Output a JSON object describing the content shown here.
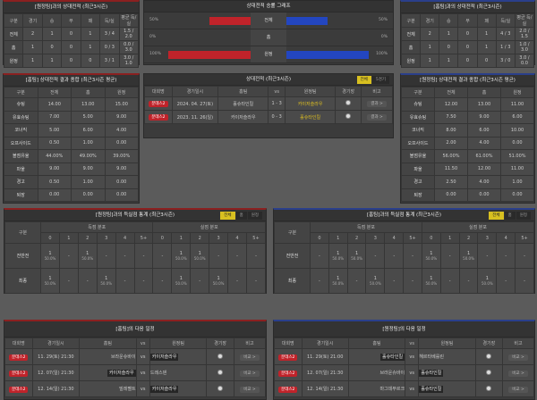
{
  "h2h_left": {
    "title": "[원정팀]과의 상대전적 (최근3시즌)",
    "headers": [
      "구분",
      "경기",
      "승",
      "무",
      "패",
      "득/실",
      "평균 득/실"
    ],
    "rows": [
      [
        "전체",
        "2",
        "1",
        "0",
        "1",
        "3 / 4",
        "1.5 / 2.0"
      ],
      [
        "홈",
        "1",
        "0",
        "0",
        "1",
        "0 / 3",
        "0.0 / 3.0"
      ],
      [
        "원정",
        "1",
        "1",
        "0",
        "0",
        "3 / 1",
        "3.0 / 1.0"
      ]
    ]
  },
  "h2h_right": {
    "title": "[홈팀]과의 상대전적 (최근3시즌)",
    "headers": [
      "구분",
      "경기",
      "승",
      "무",
      "패",
      "득/실",
      "평균 득/실"
    ],
    "rows": [
      [
        "전체",
        "2",
        "1",
        "0",
        "1",
        "4 / 3",
        "2.0 / 1.5"
      ],
      [
        "홈",
        "1",
        "0",
        "0",
        "1",
        "1 / 3",
        "1.0 / 3.0"
      ],
      [
        "원정",
        "1",
        "1",
        "0",
        "0",
        "3 / 0",
        "3.0 / 0.0"
      ]
    ]
  },
  "graph": {
    "title": "상대전적 승률 그래프",
    "home_color": "#c0232a",
    "away_color": "#2346c0",
    "rows": [
      {
        "label": "전체",
        "left": 50,
        "right": 50,
        "left_text": "50%",
        "right_text": "50%"
      },
      {
        "label": "홈",
        "left": 0,
        "right": 0,
        "left_text": "0%",
        "right_text": "0%"
      },
      {
        "label": "원정",
        "left": 100,
        "right": 100,
        "left_text": "100%",
        "right_text": "100%"
      }
    ]
  },
  "summary_left": {
    "title": "[홈팀] 상대전적 결과 종합 (최근3시즌 평균)",
    "headers": [
      "구분",
      "전체",
      "홈",
      "원정"
    ],
    "rows": [
      [
        "슈팅",
        "14.00",
        "13.00",
        "15.00"
      ],
      [
        "유효슈팅",
        "7.00",
        "5.00",
        "9.00"
      ],
      [
        "코너킥",
        "5.00",
        "6.00",
        "4.00"
      ],
      [
        "오프사이드",
        "0.50",
        "1.00",
        "0.00"
      ],
      [
        "볼점유율",
        "44.00%",
        "49.00%",
        "39.00%"
      ],
      [
        "파울",
        "9.00",
        "9.00",
        "9.00"
      ],
      [
        "경고",
        "0.50",
        "1.00",
        "0.00"
      ],
      [
        "퇴장",
        "0.00",
        "0.00",
        "0.00"
      ]
    ]
  },
  "summary_right": {
    "title": "[원정팀] 상대전적 결과 종합 (최근3시즌 평균)",
    "headers": [
      "구분",
      "전체",
      "홈",
      "원정"
    ],
    "rows": [
      [
        "슈팅",
        "12.00",
        "13.00",
        "11.00"
      ],
      [
        "유효슈팅",
        "7.50",
        "9.00",
        "6.00"
      ],
      [
        "코너킥",
        "8.00",
        "6.00",
        "10.00"
      ],
      [
        "오프사이드",
        "2.00",
        "4.00",
        "0.00"
      ],
      [
        "볼점유율",
        "56.00%",
        "61.00%",
        "51.00%"
      ],
      [
        "파울",
        "11.50",
        "12.00",
        "11.00"
      ],
      [
        "경고",
        "2.50",
        "4.00",
        "1.00"
      ],
      [
        "퇴장",
        "0.00",
        "0.00",
        "0.00"
      ]
    ]
  },
  "recent": {
    "title": "상대전적 (최근3시즌)",
    "tabs": [
      "전체",
      "5경기"
    ],
    "headers": [
      "대회명",
      "경기일시",
      "홈팀",
      "vs",
      "원정팀",
      "경기장",
      "비고"
    ],
    "rows": [
      {
        "league": "분데스2",
        "date": "2024. 04. 27(토)",
        "home": "홀슈타인킬",
        "score": "1 - 3",
        "away": "카이저슬라우",
        "winner": "away",
        "note": "결과 >"
      },
      {
        "league": "분데스2",
        "date": "2023. 11. 26(일)",
        "home": "카이저슬라우",
        "score": "0 - 3",
        "away": "홀슈타인킬",
        "winner": "away",
        "note": "결과 >"
      }
    ]
  },
  "goals_left": {
    "title": "[원정팀]과의 득실점 통계 (최근3시즌)",
    "tabs": [
      "전체",
      "홈",
      "원정"
    ],
    "col_label": "구분",
    "scored_label": "득점 분포",
    "conceded_label": "실점 분포",
    "buckets": [
      "0",
      "1",
      "2",
      "3",
      "4",
      "5+"
    ],
    "rows": [
      {
        "label": "전반전",
        "scored": [
          "1|50.0%",
          "-",
          "1|50.0%",
          "-",
          "-",
          "-"
        ],
        "conceded": [
          "-",
          "1|50.0%",
          "1|50.0%",
          "-",
          "-",
          "-"
        ]
      },
      {
        "label": "최종",
        "scored": [
          "1|50.0%",
          "-",
          "-",
          "1|50.0%",
          "-",
          "-"
        ],
        "conceded": [
          "-",
          "1|50.0%",
          "-",
          "1|50.0%",
          "-",
          "-"
        ]
      }
    ]
  },
  "goals_right": {
    "title": "[홈팀]과의 득실점 통계 (최근3시즌)",
    "tabs": [
      "전체",
      "홈",
      "원정"
    ],
    "col_label": "구분",
    "scored_label": "득점 분포",
    "conceded_label": "실점 분포",
    "buckets": [
      "0",
      "1",
      "2",
      "3",
      "4",
      "5+"
    ],
    "rows": [
      {
        "label": "전반전",
        "scored": [
          "-",
          "1|50.0%",
          "1|50.0%",
          "-",
          "-",
          "-"
        ],
        "conceded": [
          "1|50.0%",
          "-",
          "1|50.0%",
          "-",
          "-",
          "-"
        ]
      },
      {
        "label": "최종",
        "scored": [
          "-",
          "1|50.0%",
          "-",
          "1|50.0%",
          "-",
          "-"
        ],
        "conceded": [
          "1|50.0%",
          "-",
          "-",
          "1|50.0%",
          "-",
          "-"
        ]
      }
    ]
  },
  "next_left": {
    "title": "[홈팀]의 다음 일정",
    "headers": [
      "대회명",
      "경기일시",
      "홈팀",
      "vs",
      "원정팀",
      "경기장",
      "비고"
    ],
    "rows": [
      {
        "league": "분데스2",
        "date": "11. 29(토) 21:30",
        "home": "브라운슈바이",
        "away": "카이저슬라우",
        "hl": "away",
        "note": "비교 >"
      },
      {
        "league": "분데스2",
        "date": "12. 07(일) 21:30",
        "home": "카이저슬라우",
        "away": "드레스덴",
        "hl": "home",
        "note": "비교 >"
      },
      {
        "league": "분데스2",
        "date": "12. 14(일) 21:30",
        "home": "빌레펠트",
        "away": "카이저슬라우",
        "hl": "away",
        "note": "비교 >"
      }
    ]
  },
  "next_right": {
    "title": "[원정팀]의 다음 일정",
    "headers": [
      "대회명",
      "경기일시",
      "홈팀",
      "vs",
      "원정팀",
      "경기장",
      "비고"
    ],
    "rows": [
      {
        "league": "분데스2",
        "date": "11. 29(토) 21:00",
        "home": "홀슈타인킬",
        "away": "헤르타베를린",
        "hl": "home",
        "note": "비교 >"
      },
      {
        "league": "분데스2",
        "date": "12. 07(일) 21:30",
        "home": "브라운슈바이",
        "away": "홀슈타인킬",
        "hl": "away",
        "note": "비교 >"
      },
      {
        "league": "분데스2",
        "date": "12. 14(일) 21:30",
        "home": "마그데부르크",
        "away": "홀슈타인킬",
        "hl": "away",
        "note": "비교 >"
      }
    ]
  }
}
